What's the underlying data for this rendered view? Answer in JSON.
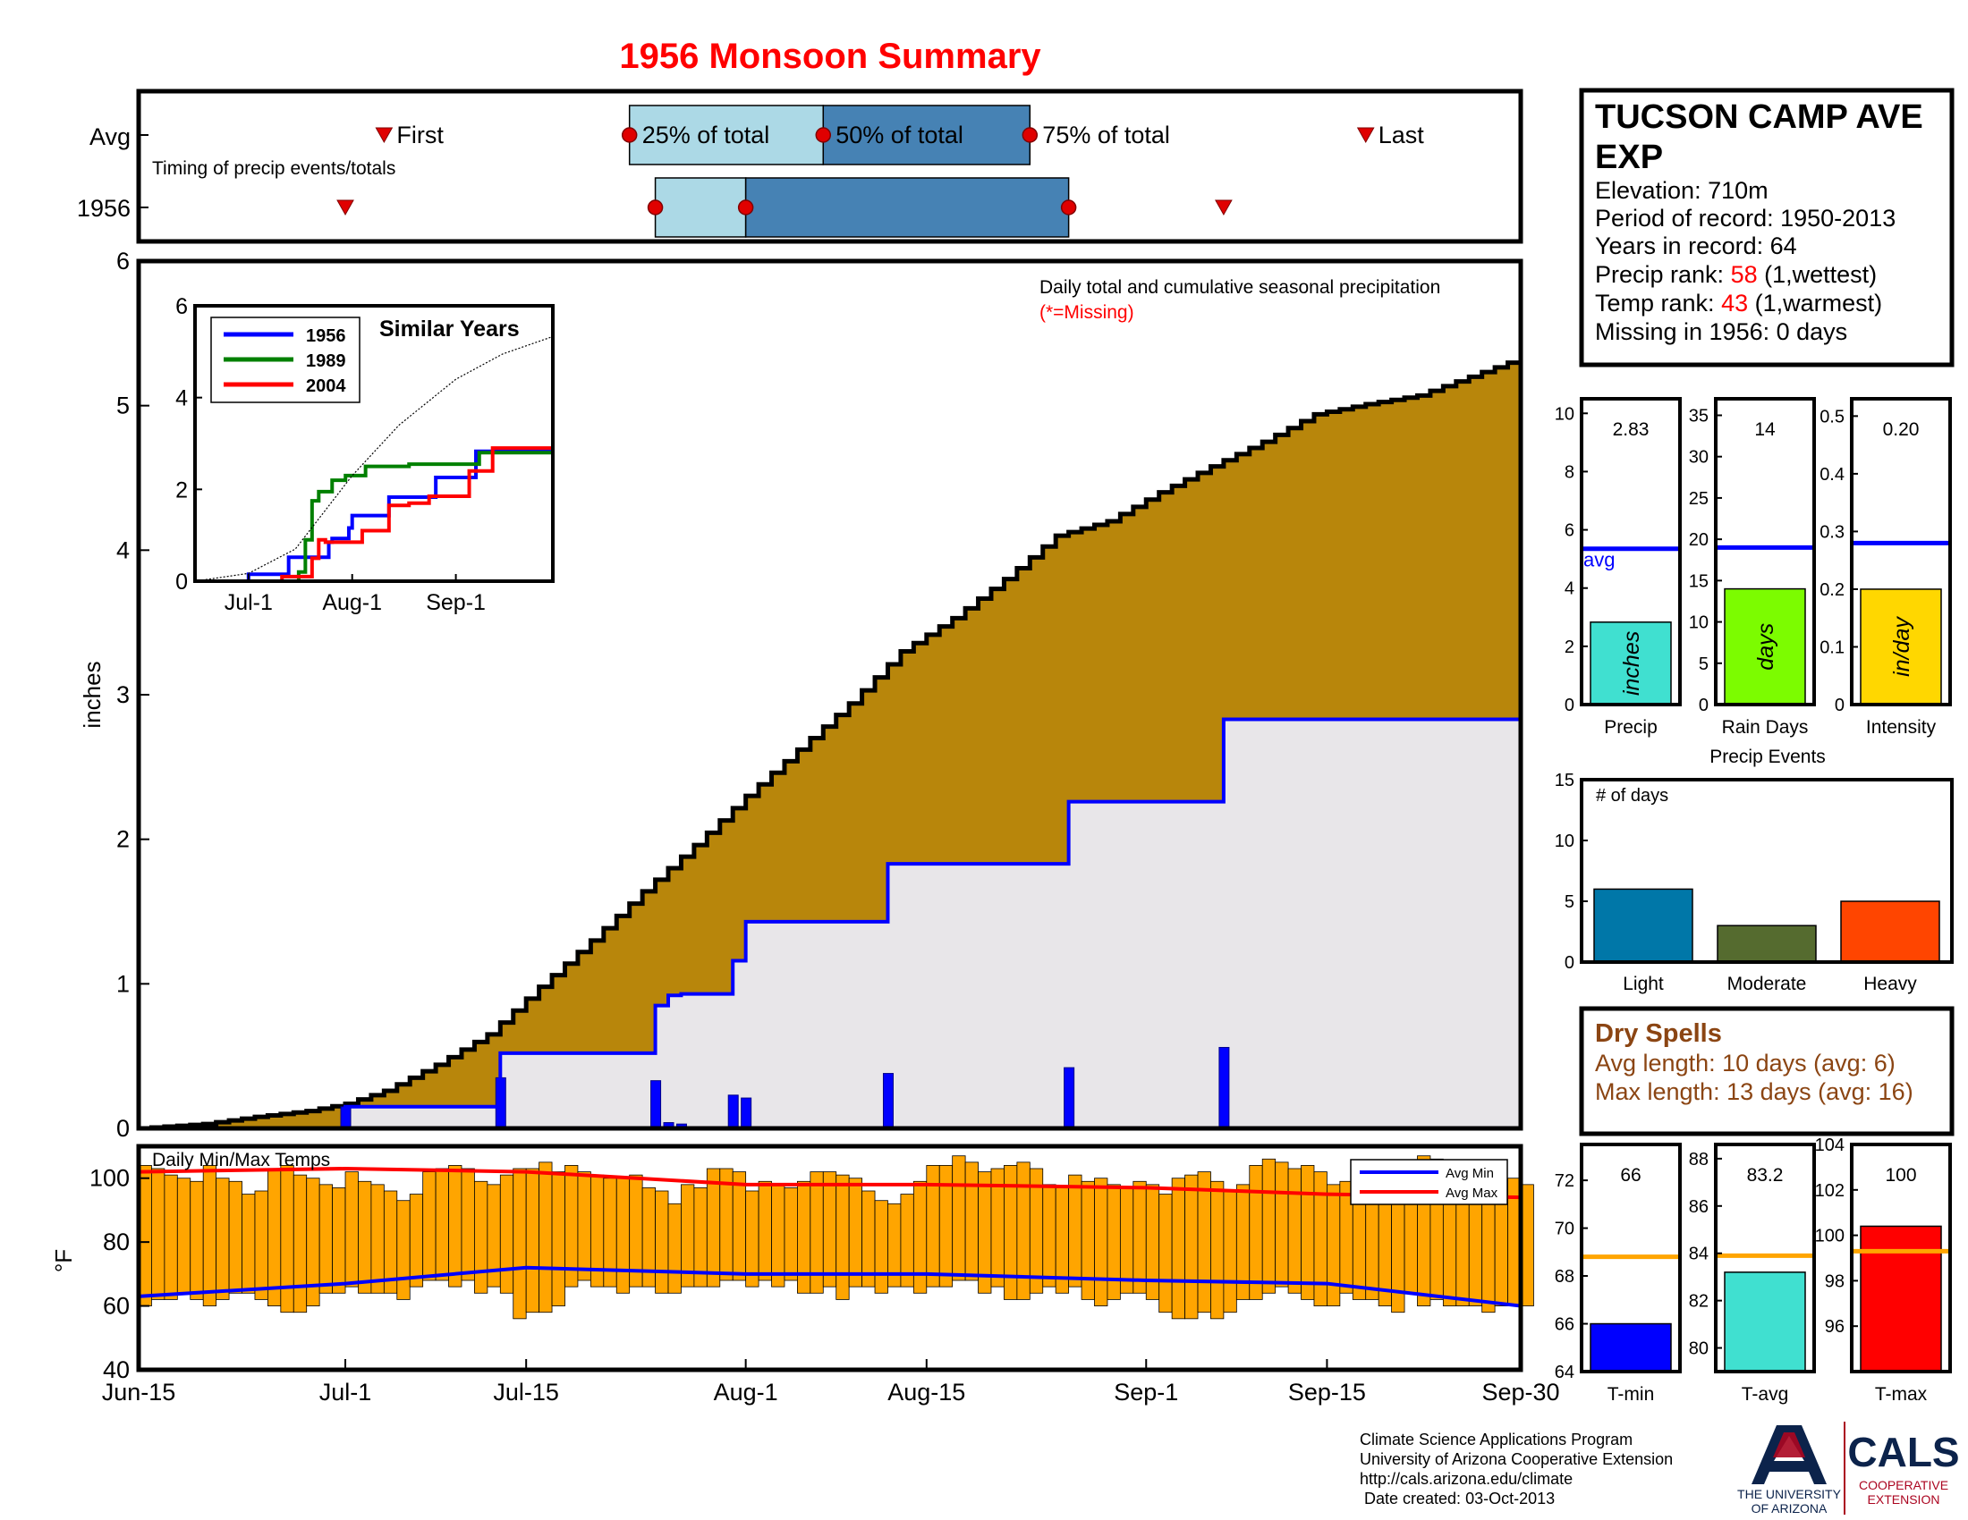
{
  "title": "1956 Monsoon Summary",
  "timing": {
    "rows": [
      "Avg",
      "1956"
    ],
    "caption": "Timing of precip events/totals",
    "avg": {
      "first": "Jul-4",
      "p25": "Jul-23",
      "p50": "Aug-7",
      "p75": "Aug-23",
      "last": "Sep-18"
    },
    "year": {
      "first": "Jul-1",
      "p25": "Jul-25",
      "p50": "Aug-1",
      "p75": "Aug-26",
      "last": "Sep-7"
    },
    "labels": {
      "first": "First",
      "p25": "25% of total",
      "p50": "50% of total",
      "p75": "75% of total",
      "last": "Last"
    },
    "colors": {
      "light": "#acd9e6",
      "dark": "#4682b4",
      "marker": "#e00000"
    }
  },
  "station": {
    "name": "TUCSON CAMP AVE EXP",
    "name_line1": "TUCSON CAMP AVE",
    "name_line2": "EXP",
    "elevation": "Elevation: 710m",
    "period": "Period of record: 1950-2013",
    "years": "Years in record: 64",
    "precip_rank_label": "Precip rank: ",
    "precip_rank_value": "58",
    "precip_rank_note": " (1,wettest)",
    "temp_rank_label": "Temp rank: ",
    "temp_rank_value": "43",
    "temp_rank_note": " (1,warmest)",
    "missing": "Missing in 1956: 0 days"
  },
  "dry_spells": {
    "title": "Dry Spells",
    "avg_length": "Avg length: 10 days (avg: 6)",
    "max_length": "Max length: 13 days (avg: 16)"
  },
  "credits": {
    "line1": "Climate Science Applications Program",
    "line2": "University of Arizona Cooperative Extension",
    "line3": "http://cals.arizona.edu/climate",
    "line4": " Date created: 03-Oct-2013",
    "ua_name_1": "THE UNIVERSITY",
    "ua_name_2": "OF ARIZONA",
    "cals_big": "CALS",
    "cals_small_1": "COOPERATIVE",
    "cals_small_2": "EXTENSION"
  },
  "chart_data": [
    {
      "id": "precip_main",
      "type": "area",
      "subtitle": "Daily total and cumulative seasonal precipitation",
      "missing_note": "(*=Missing)",
      "ylabel": "inches",
      "ylim": [
        0,
        6
      ],
      "yticks": [
        0,
        1,
        2,
        3,
        4,
        5,
        6
      ],
      "xlim": [
        "Jun-15",
        "Sep-30"
      ],
      "xticks": [
        "Jun-15",
        "Jul-1",
        "Jul-15",
        "Aug-1",
        "Aug-15",
        "Sep-1",
        "Sep-15",
        "Sep-30"
      ],
      "avg_cumulative": {
        "name": "Average cumulative",
        "color": "#b8860b",
        "x": [
          "Jun-15",
          "Jun-20",
          "Jun-24",
          "Jun-28",
          "Jul-1",
          "Jul-4",
          "Jul-8",
          "Jul-12",
          "Jul-16",
          "Jul-20",
          "Jul-24",
          "Jul-28",
          "Aug-1",
          "Aug-5",
          "Aug-9",
          "Aug-13",
          "Aug-17",
          "Aug-21",
          "Aug-25",
          "Aug-29",
          "Sep-2",
          "Sep-6",
          "Sep-10",
          "Sep-14",
          "Sep-18",
          "Sep-22",
          "Sep-26",
          "Sep-30"
        ],
        "values": [
          0,
          0.03,
          0.08,
          0.12,
          0.17,
          0.26,
          0.44,
          0.65,
          0.98,
          1.3,
          1.64,
          1.96,
          2.3,
          2.62,
          2.94,
          3.3,
          3.53,
          3.8,
          4.1,
          4.2,
          4.4,
          4.58,
          4.75,
          4.94,
          5.01,
          5.07,
          5.2,
          5.33
        ]
      },
      "cumulative": {
        "name": "1956",
        "color": "#0000ff",
        "x": [
          "Jun-15",
          "Jul-1",
          "Jul-13",
          "Jul-25",
          "Jul-26",
          "Jul-27",
          "Jul-31",
          "Aug-1",
          "Aug-12",
          "Aug-26",
          "Sep-7",
          "Sep-30"
        ],
        "values": [
          0,
          0.15,
          0.52,
          0.85,
          0.92,
          0.93,
          1.16,
          1.43,
          1.83,
          2.26,
          2.83,
          2.83
        ]
      },
      "daily": {
        "name": "Daily precip",
        "color": "#0000ff",
        "dates": [
          "Jul-1",
          "Jul-13",
          "Jul-25",
          "Jul-26",
          "Jul-27",
          "Jul-30",
          "Jul-31",
          "Aug-1",
          "Aug-12",
          "Aug-26",
          "Sep-7"
        ],
        "values": [
          0.15,
          0.35,
          0.33,
          0.04,
          0.03,
          0.01,
          0.23,
          0.21,
          0.38,
          0.42,
          0.56
        ]
      }
    },
    {
      "id": "similar_years",
      "type": "line",
      "title": "Similar Years",
      "ylim": [
        0,
        6
      ],
      "yticks": [
        0,
        2,
        4,
        6
      ],
      "xticks": [
        "Jul-1",
        "Aug-1",
        "Sep-1"
      ],
      "series": [
        {
          "name": "1956",
          "color": "#0000ff",
          "x": [
            "Jun-15",
            "Jun-30",
            "Jul-1",
            "Jul-13",
            "Jul-25",
            "Jul-26",
            "Jul-31",
            "Aug-1",
            "Aug-12",
            "Aug-26",
            "Sep-7",
            "Sep-30"
          ],
          "values": [
            0,
            0,
            0.15,
            0.52,
            0.85,
            0.93,
            1.16,
            1.43,
            1.83,
            2.26,
            2.83,
            2.83
          ]
        },
        {
          "name": "1989",
          "color": "#008000",
          "x": [
            "Jun-15",
            "Jul-15",
            "Jul-16",
            "Jul-18",
            "Jul-20",
            "Jul-22",
            "Jul-26",
            "Jul-30",
            "Aug-5",
            "Aug-18",
            "Sep-8",
            "Sep-30"
          ],
          "values": [
            0,
            0,
            0.2,
            0.9,
            1.75,
            1.95,
            2.2,
            2.3,
            2.5,
            2.55,
            2.8,
            2.8
          ]
        },
        {
          "name": "2004",
          "color": "#ff0000",
          "x": [
            "Jun-15",
            "Jul-10",
            "Jul-11",
            "Jul-20",
            "Jul-22",
            "Jul-24",
            "Aug-4",
            "Aug-12",
            "Aug-18",
            "Aug-24",
            "Sep-5",
            "Sep-12",
            "Sep-30"
          ],
          "values": [
            0,
            0,
            0.1,
            0.5,
            0.9,
            0.85,
            1.1,
            1.65,
            1.7,
            1.85,
            2.4,
            2.9,
            2.9
          ]
        },
        {
          "name": "Average",
          "color": "#000000",
          "dashed": true,
          "x": [
            "Jun-15",
            "Jul-1",
            "Jul-15",
            "Aug-1",
            "Aug-15",
            "Sep-1",
            "Sep-15",
            "Sep-30"
          ],
          "values": [
            0,
            0.17,
            0.7,
            2.3,
            3.4,
            4.4,
            4.95,
            5.33
          ]
        }
      ]
    },
    {
      "id": "daily_temps",
      "type": "bar",
      "title": "Daily Min/Max Temps",
      "ylabel": "°F",
      "ylim": [
        40,
        110
      ],
      "yticks": [
        40,
        60,
        80,
        100
      ],
      "xticks": [
        "Jun-15",
        "Jul-1",
        "Jul-15",
        "Aug-1",
        "Aug-15",
        "Sep-1",
        "Sep-15",
        "Sep-30"
      ],
      "bar_color": "#ffa500",
      "start": "Jun-15",
      "tmax": [
        104,
        103,
        101,
        100,
        99,
        104,
        100,
        99,
        95,
        96,
        103,
        104,
        101,
        100,
        98,
        97,
        102,
        99,
        98,
        96,
        93,
        95,
        102,
        103,
        104,
        103,
        99,
        98,
        101,
        103,
        103,
        105,
        102,
        104,
        102,
        101,
        100,
        100,
        101,
        97,
        96,
        92,
        98,
        97,
        103,
        103,
        102,
        96,
        99,
        98,
        97,
        99,
        102,
        102,
        101,
        100,
        96,
        93,
        92,
        95,
        99,
        104,
        104,
        107,
        105,
        102,
        103,
        104,
        105,
        103,
        98,
        97,
        101,
        99,
        100,
        98,
        97,
        99,
        98,
        95,
        100,
        101,
        102,
        99,
        96,
        98,
        104,
        106,
        105,
        103,
        104,
        102,
        98,
        99,
        101,
        97,
        101,
        104,
        105,
        107,
        106,
        103,
        101,
        99,
        96,
        95,
        100,
        98
      ],
      "tmin": [
        60,
        62,
        62,
        64,
        62,
        60,
        62,
        64,
        64,
        62,
        60,
        58,
        58,
        60,
        64,
        64,
        66,
        64,
        64,
        64,
        62,
        66,
        68,
        68,
        66,
        68,
        64,
        66,
        64,
        56,
        58,
        58,
        60,
        66,
        68,
        66,
        66,
        64,
        66,
        66,
        64,
        64,
        66,
        66,
        66,
        68,
        68,
        66,
        68,
        66,
        68,
        64,
        64,
        66,
        62,
        66,
        66,
        64,
        66,
        66,
        64,
        66,
        66,
        68,
        68,
        64,
        66,
        62,
        62,
        64,
        66,
        64,
        66,
        62,
        60,
        62,
        64,
        64,
        62,
        58,
        56,
        56,
        58,
        56,
        58,
        62,
        62,
        64,
        66,
        64,
        62,
        60,
        60,
        64,
        62,
        62,
        60,
        58,
        64,
        60,
        62,
        60,
        60,
        60,
        58,
        60,
        60,
        60
      ],
      "avg_min": {
        "name": "Avg Min",
        "color": "#0000ff",
        "x": [
          "Jun-15",
          "Jul-1",
          "Jul-15",
          "Aug-1",
          "Aug-15",
          "Sep-1",
          "Sep-15",
          "Sep-30"
        ],
        "values": [
          63,
          67,
          72,
          70,
          70,
          68,
          67,
          60
        ]
      },
      "avg_max": {
        "name": "Avg Max",
        "color": "#ff0000",
        "x": [
          "Jun-15",
          "Jul-1",
          "Jul-15",
          "Aug-1",
          "Aug-15",
          "Sep-1",
          "Sep-15",
          "Sep-30"
        ],
        "values": [
          102,
          103,
          102,
          98,
          98,
          97,
          95,
          94
        ]
      }
    },
    {
      "id": "precip_bars",
      "type": "bar",
      "panels": [
        {
          "label": "Precip",
          "unit": "inches",
          "value": 2.83,
          "value_label": "2.83",
          "avg": 5.35,
          "ylim": [
            0,
            10.5
          ],
          "yticks": [
            0,
            2,
            4,
            6,
            8,
            10
          ],
          "color": "#40e0d0",
          "avg_label": "avg"
        },
        {
          "label": "Rain Days",
          "unit": "days",
          "value": 14,
          "value_label": "14",
          "avg": 19,
          "ylim": [
            0,
            37
          ],
          "yticks": [
            0,
            5,
            10,
            15,
            20,
            25,
            30,
            35
          ],
          "color": "#7cfc00"
        },
        {
          "label": "Intensity",
          "unit": "in/day",
          "value": 0.2,
          "value_label": "0.20",
          "avg": 0.28,
          "ylim": [
            0,
            0.53
          ],
          "yticks": [
            0,
            0.1,
            0.2,
            0.3,
            0.4,
            0.5
          ],
          "color": "#ffd700"
        }
      ],
      "avg_color": "#0000ff"
    },
    {
      "id": "precip_events",
      "type": "bar",
      "title": "Precip Events",
      "ylabel_inside": "# of days",
      "ylim": [
        0,
        15
      ],
      "yticks": [
        0,
        5,
        10,
        15
      ],
      "categories": [
        "Light",
        "Moderate",
        "Heavy"
      ],
      "values": [
        6,
        3,
        5
      ],
      "colors": [
        "#0077a8",
        "#556b2f",
        "#ff4500"
      ]
    },
    {
      "id": "temp_bars",
      "type": "bar",
      "panels": [
        {
          "label": "T-min",
          "value": 66,
          "value_label": "66",
          "avg": 68.8,
          "ylim": [
            64,
            73.5
          ],
          "yticks": [
            64,
            66,
            68,
            70,
            72
          ],
          "color": "#0000ff"
        },
        {
          "label": "T-avg",
          "value": 83.2,
          "value_label": "83.2",
          "avg": 83.9,
          "ylim": [
            79,
            88.6
          ],
          "yticks": [
            80,
            82,
            84,
            86,
            88
          ],
          "color": "#40e0d0"
        },
        {
          "label": "T-max",
          "value": 100.4,
          "value_label": "100",
          "avg": 99.3,
          "ylim": [
            94,
            104
          ],
          "yticks": [
            96,
            98,
            100,
            102,
            104
          ],
          "color": "#ff0000"
        }
      ],
      "avg_color": "#ffa500"
    }
  ]
}
